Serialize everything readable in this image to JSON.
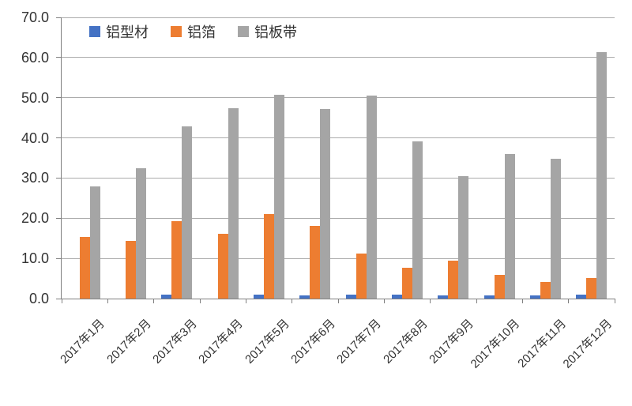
{
  "chart_data": {
    "type": "bar",
    "title": "",
    "xlabel": "",
    "ylabel": "",
    "categories": [
      "2017年1月",
      "2017年2月",
      "2017年3月",
      "2017年4月",
      "2017年5月",
      "2017年6月",
      "2017年7月",
      "2017年8月",
      "2017年9月",
      "2017年10月",
      "2017年11月",
      "2017年12月"
    ],
    "series": [
      {
        "name": "铝型材",
        "color": "#4472C4",
        "values": [
          0,
          0,
          0.9,
          0,
          0.9,
          0.8,
          0.9,
          0.9,
          0.8,
          0.7,
          0.8,
          0.9
        ]
      },
      {
        "name": "铝箔",
        "color": "#ED7D31",
        "values": [
          15.3,
          14.3,
          19.2,
          16.1,
          21.0,
          18.1,
          11.2,
          7.7,
          9.4,
          6.0,
          4.1,
          5.2
        ]
      },
      {
        "name": "铝板带",
        "color": "#A5A5A5",
        "values": [
          28.0,
          32.5,
          42.8,
          47.4,
          50.7,
          47.1,
          50.5,
          39.2,
          30.5,
          36.0,
          34.9,
          61.4
        ]
      }
    ],
    "ylim": [
      0,
      70
    ],
    "yticks": [
      0,
      10,
      20,
      30,
      40,
      50,
      60,
      70
    ],
    "ytick_labels": [
      "0.0",
      "10.0",
      "20.0",
      "30.0",
      "40.0",
      "50.0",
      "60.0",
      "70.0"
    ],
    "grid": true,
    "legend_position": "top-inside-left",
    "colors": {
      "grid": "#ababab",
      "axis": "#808080",
      "text": "#333333"
    }
  }
}
